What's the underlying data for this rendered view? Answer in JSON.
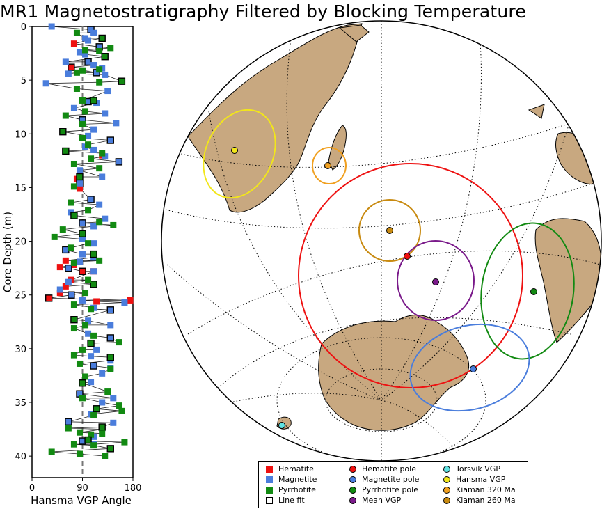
{
  "title": "MR1 Magnetostratigraphy Filtered by Blocking Temperature",
  "colors": {
    "hematite": "#ee1111",
    "magnetite": "#4a7ddc",
    "pyrrhotite": "#128a12",
    "mean": "#7a1a8a",
    "torsvik": "#5fe2e2",
    "hansma": "#f2e61a",
    "kiaman320": "#f0a020",
    "kiaman260": "#c88a10",
    "land": "#c8a880",
    "coast": "#000000"
  },
  "chart_data": [
    {
      "type": "scatter",
      "title": "",
      "xlabel": "Hansma VGP Angle",
      "ylabel": "Core Depth (m)",
      "xlim": [
        0,
        180
      ],
      "ylim": [
        0,
        42
      ],
      "y_inverted": true,
      "x_ticks": [
        0,
        90,
        180
      ],
      "y_ticks": [
        0,
        5,
        10,
        15,
        20,
        25,
        30,
        35,
        40
      ],
      "reference_line_x": 90,
      "grid": false,
      "series": [
        {
          "name": "Hematite",
          "color": "#ee1111",
          "points": [
            [
              75,
              1.6
            ],
            [
              70,
              3.8
            ],
            [
              60,
              21.8
            ],
            [
              50,
              22.4
            ],
            [
              75,
              22.2
            ],
            [
              90,
              22.8
            ],
            [
              50,
              24.8
            ],
            [
              60,
              24.2
            ],
            [
              70,
              23.6
            ],
            [
              30,
              25.3
            ],
            [
              175,
              25.5
            ],
            [
              115,
              25.6
            ],
            [
              80,
              14.2
            ],
            [
              85,
              14.6
            ],
            [
              85,
              15.1
            ],
            [
              125,
              12.0
            ],
            [
              110,
              22.8
            ]
          ]
        },
        {
          "name": "Magnetite",
          "color": "#4a7ddc",
          "points": [
            [
              35,
              0
            ],
            [
              105,
              0.3
            ],
            [
              110,
              0.6
            ],
            [
              95,
              1.1
            ],
            [
              100,
              1.3
            ],
            [
              120,
              1.9
            ],
            [
              85,
              2.4
            ],
            [
              95,
              2.6
            ],
            [
              60,
              3.3
            ],
            [
              100,
              3.3
            ],
            [
              110,
              3.6
            ],
            [
              125,
              3.9
            ],
            [
              65,
              4.4
            ],
            [
              115,
              4.3
            ],
            [
              130,
              4.5
            ],
            [
              25,
              5.3
            ],
            [
              135,
              6.0
            ],
            [
              100,
              7.0
            ],
            [
              115,
              7.1
            ],
            [
              75,
              7.6
            ],
            [
              130,
              8.1
            ],
            [
              90,
              8.7
            ],
            [
              150,
              9.0
            ],
            [
              110,
              9.6
            ],
            [
              100,
              10.2
            ],
            [
              140,
              10.6
            ],
            [
              95,
              11.2
            ],
            [
              110,
              11.5
            ],
            [
              130,
              12.1
            ],
            [
              155,
              12.6
            ],
            [
              85,
              13.4
            ],
            [
              125,
              14.0
            ],
            [
              85,
              14.6
            ],
            [
              105,
              16.1
            ],
            [
              120,
              16.6
            ],
            [
              70,
              17.3
            ],
            [
              130,
              17.9
            ],
            [
              90,
              18.3
            ],
            [
              110,
              18.6
            ],
            [
              90,
              19.8
            ],
            [
              110,
              20.2
            ],
            [
              60,
              20.8
            ],
            [
              90,
              21.2
            ],
            [
              110,
              21.5
            ],
            [
              85,
              21.9
            ],
            [
              65,
              22.5
            ],
            [
              110,
              22.8
            ],
            [
              65,
              23.8
            ],
            [
              50,
              24.5
            ],
            [
              70,
              25.0
            ],
            [
              90,
              25.5
            ],
            [
              165,
              25.7
            ],
            [
              110,
              26.2
            ],
            [
              140,
              26.4
            ],
            [
              100,
              27.4
            ],
            [
              140,
              27.8
            ],
            [
              100,
              28.6
            ],
            [
              140,
              29.0
            ],
            [
              115,
              30.1
            ],
            [
              105,
              30.7
            ],
            [
              140,
              31.1
            ],
            [
              110,
              31.6
            ],
            [
              140,
              31.8
            ],
            [
              125,
              32.3
            ],
            [
              105,
              33.1
            ],
            [
              85,
              34.2
            ],
            [
              145,
              34.6
            ],
            [
              125,
              35.0
            ],
            [
              105,
              36.1
            ],
            [
              65,
              36.8
            ],
            [
              145,
              36.9
            ],
            [
              125,
              37.5
            ],
            [
              110,
              38.2
            ],
            [
              90,
              38.6
            ],
            [
              110,
              38.9
            ]
          ]
        },
        {
          "name": "Pyrrhotite",
          "color": "#128a12",
          "points": [
            [
              80,
              0.6
            ],
            [
              125,
              1.1
            ],
            [
              95,
              2.2
            ],
            [
              120,
              2.3
            ],
            [
              140,
              2.0
            ],
            [
              130,
              2.8
            ],
            [
              90,
              4.1
            ],
            [
              120,
              4.0
            ],
            [
              80,
              4.3
            ],
            [
              160,
              5.1
            ],
            [
              120,
              5.2
            ],
            [
              80,
              5.8
            ],
            [
              90,
              6.9
            ],
            [
              110,
              6.9
            ],
            [
              95,
              7.9
            ],
            [
              60,
              8.3
            ],
            [
              90,
              9.1
            ],
            [
              55,
              9.8
            ],
            [
              90,
              10.4
            ],
            [
              100,
              11.0
            ],
            [
              125,
              11.8
            ],
            [
              60,
              11.6
            ],
            [
              105,
              12.3
            ],
            [
              75,
              12.8
            ],
            [
              120,
              13.2
            ],
            [
              85,
              14.0
            ],
            [
              75,
              14.9
            ],
            [
              70,
              16.4
            ],
            [
              100,
              17.1
            ],
            [
              75,
              17.6
            ],
            [
              120,
              18.2
            ],
            [
              145,
              18.5
            ],
            [
              55,
              18.9
            ],
            [
              90,
              19.3
            ],
            [
              40,
              19.6
            ],
            [
              100,
              20.2
            ],
            [
              70,
              20.6
            ],
            [
              110,
              21.2
            ],
            [
              120,
              21.8
            ],
            [
              75,
              22.0
            ],
            [
              95,
              24.8
            ],
            [
              110,
              24.0
            ],
            [
              100,
              23.6
            ],
            [
              75,
              25.9
            ],
            [
              105,
              26.3
            ],
            [
              75,
              27.3
            ],
            [
              95,
              27.8
            ],
            [
              75,
              28.1
            ],
            [
              110,
              28.8
            ],
            [
              105,
              29.5
            ],
            [
              155,
              29.4
            ],
            [
              90,
              30.1
            ],
            [
              75,
              30.6
            ],
            [
              140,
              30.8
            ],
            [
              85,
              31.4
            ],
            [
              140,
              31.9
            ],
            [
              95,
              32.6
            ],
            [
              90,
              33.2
            ],
            [
              135,
              34.0
            ],
            [
              90,
              34.6
            ],
            [
              155,
              35.3
            ],
            [
              115,
              35.6
            ],
            [
              160,
              35.8
            ],
            [
              110,
              36.2
            ],
            [
              65,
              37.4
            ],
            [
              125,
              37.3
            ],
            [
              85,
              37.8
            ],
            [
              105,
              38.0
            ],
            [
              125,
              37.9
            ],
            [
              100,
              38.5
            ],
            [
              165,
              38.7
            ],
            [
              75,
              38.9
            ],
            [
              110,
              39.0
            ],
            [
              140,
              39.3
            ],
            [
              35,
              39.6
            ],
            [
              85,
              39.8
            ],
            [
              130,
              40.0
            ]
          ]
        },
        {
          "name": "Line fit",
          "color": "#000000",
          "marker": "outline"
        }
      ]
    },
    {
      "type": "map",
      "title": "",
      "projection": "orthographic",
      "series": [
        {
          "name": "Hematite pole",
          "color": "#ee1111"
        },
        {
          "name": "Magnetite pole",
          "color": "#4a7ddc"
        },
        {
          "name": "Pyrrhotite pole",
          "color": "#128a12"
        },
        {
          "name": "Mean VGP",
          "color": "#7a1a8a"
        },
        {
          "name": "Torsvik VGP",
          "color": "#5fe2e2"
        },
        {
          "name": "Hansma VGP",
          "color": "#f2e61a"
        },
        {
          "name": "Kiaman 320 Ma",
          "color": "#f0a020"
        },
        {
          "name": "Kiaman 260 Ma",
          "color": "#c88a10"
        }
      ]
    }
  ],
  "legend": {
    "items": [
      {
        "label": "Hematite",
        "symbol": "square",
        "color": "#ee1111"
      },
      {
        "label": "Magnetite",
        "symbol": "square",
        "color": "#4a7ddc"
      },
      {
        "label": "Pyrrhotite",
        "symbol": "square",
        "color": "#128a12"
      },
      {
        "label": "Line fit",
        "symbol": "open-square",
        "color": "#000000"
      },
      {
        "label": "Hematite pole",
        "symbol": "circle",
        "color": "#ee1111"
      },
      {
        "label": "Magnetite pole",
        "symbol": "circle",
        "color": "#4a7ddc"
      },
      {
        "label": "Pyrrhotite pole",
        "symbol": "circle",
        "color": "#128a12"
      },
      {
        "label": "Mean VGP",
        "symbol": "circle",
        "color": "#7a1a8a"
      },
      {
        "label": "Torsvik VGP",
        "symbol": "circle",
        "color": "#5fe2e2"
      },
      {
        "label": "Hansma VGP",
        "symbol": "circle",
        "color": "#f2e61a"
      },
      {
        "label": "Kiaman 320 Ma",
        "symbol": "circle",
        "color": "#f0a020"
      },
      {
        "label": "Kiaman 260 Ma",
        "symbol": "circle",
        "color": "#c88a10"
      }
    ]
  }
}
